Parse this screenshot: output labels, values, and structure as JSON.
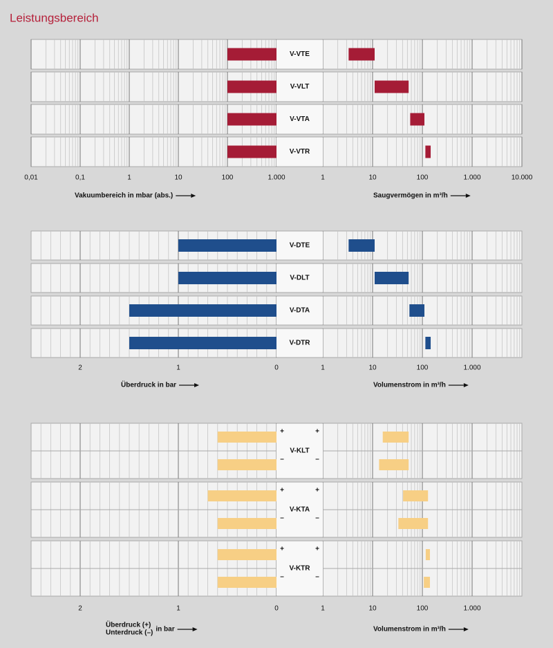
{
  "title": "Leistungsbereich",
  "chart_data": [
    {
      "type": "range-bar",
      "color": "#a51c36",
      "grid": true,
      "left_axis": {
        "scale": "log",
        "xlim": [
          0.01,
          1000
        ],
        "xticks": [
          {
            "value": 0.01,
            "label": "0,01"
          },
          {
            "value": 0.1,
            "label": "0,1"
          },
          1,
          10,
          100,
          {
            "value": 1000,
            "label": "1.000"
          }
        ],
        "label": "Vakuumbereich in mbar (abs.)"
      },
      "right_axis": {
        "scale": "log",
        "xlim": [
          1,
          10000
        ],
        "xticks": [
          1,
          10,
          100,
          {
            "value": 1000,
            "label": "1.000"
          },
          {
            "value": 10000,
            "label": "10.000"
          }
        ],
        "label": "Saugvermögen in m³/h"
      },
      "groups": [
        {
          "name": "V-VTE",
          "rows": [
            {
              "left": [
                100,
                1000
              ],
              "right": [
                3.3,
                11
              ]
            }
          ]
        },
        {
          "name": "V-VLT",
          "rows": [
            {
              "left": [
                100,
                1000
              ],
              "right": [
                11,
                53
              ]
            }
          ]
        },
        {
          "name": "V-VTA",
          "rows": [
            {
              "left": [
                100,
                1000
              ],
              "right": [
                57,
                110
              ]
            }
          ]
        },
        {
          "name": "V-VTR",
          "rows": [
            {
              "left": [
                100,
                1000
              ],
              "right": [
                115,
                147
              ]
            }
          ]
        }
      ]
    },
    {
      "type": "range-bar",
      "color": "#1f4e8c",
      "grid": true,
      "left_axis": {
        "scale": "linear",
        "xlim": [
          2.5,
          0
        ],
        "xticks": [
          2,
          1,
          0
        ],
        "label": "Überdruck in bar"
      },
      "right_axis": {
        "scale": "log",
        "xlim": [
          1,
          10000
        ],
        "xticks": [
          1,
          10,
          100,
          {
            "value": 1000,
            "label": "1.000"
          }
        ],
        "label": "Volumenstrom in m³/h"
      },
      "groups": [
        {
          "name": "V-DTE",
          "rows": [
            {
              "left": [
                0,
                1
              ],
              "right": [
                3.3,
                11
              ]
            }
          ]
        },
        {
          "name": "V-DLT",
          "rows": [
            {
              "left": [
                0,
                1
              ],
              "right": [
                11,
                53
              ]
            }
          ]
        },
        {
          "name": "V-DTA",
          "rows": [
            {
              "left": [
                0,
                1.5
              ],
              "right": [
                55,
                110
              ]
            }
          ]
        },
        {
          "name": "V-DTR",
          "rows": [
            {
              "left": [
                0,
                1.5
              ],
              "right": [
                115,
                147
              ]
            }
          ]
        }
      ]
    },
    {
      "type": "range-bar",
      "color": "#f7cf85",
      "grid": true,
      "left_axis": {
        "scale": "linear",
        "xlim": [
          2.5,
          0
        ],
        "xticks": [
          2,
          1,
          0
        ],
        "label": [
          "Überdruck (+)",
          "Unterdruck (–)",
          "in bar"
        ]
      },
      "right_axis": {
        "scale": "log",
        "xlim": [
          1,
          10000
        ],
        "xticks": [
          1,
          10,
          100,
          {
            "value": 1000,
            "label": "1.000"
          }
        ],
        "label": "Volumenstrom in m³/h"
      },
      "groups": [
        {
          "name": "V-KLT",
          "rows": [
            {
              "sign": "+",
              "left": [
                0,
                0.6
              ],
              "right": [
                16,
                53
              ]
            },
            {
              "sign": "–",
              "left": [
                0,
                0.6
              ],
              "right": [
                13.5,
                53
              ]
            }
          ]
        },
        {
          "name": "V-KTA",
          "rows": [
            {
              "sign": "+",
              "left": [
                0,
                0.7
              ],
              "right": [
                41,
                130
              ]
            },
            {
              "sign": "–",
              "left": [
                0,
                0.6
              ],
              "right": [
                33,
                130
              ]
            }
          ]
        },
        {
          "name": "V-KTR",
          "rows": [
            {
              "sign": "+",
              "left": [
                0,
                0.6
              ],
              "right": [
                117,
                142
              ]
            },
            {
              "sign": "–",
              "left": [
                0,
                0.6
              ],
              "right": [
                107,
                142
              ]
            }
          ]
        }
      ]
    }
  ]
}
